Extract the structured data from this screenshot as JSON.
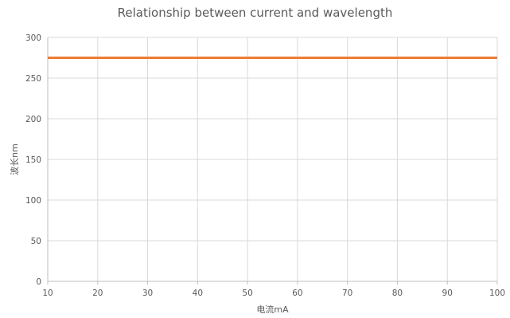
{
  "chart_data": {
    "type": "line",
    "title": "Relationship between current and wavelength",
    "xlabel": "电流mA",
    "ylabel": "波长nm",
    "x": [
      10,
      20,
      30,
      40,
      50,
      60,
      70,
      80,
      90,
      100
    ],
    "series": [
      {
        "values": [
          275,
          275,
          275,
          275,
          275,
          275,
          275,
          275,
          275,
          275
        ],
        "color": "#ED7D31"
      }
    ],
    "xlim": [
      10,
      100
    ],
    "ylim": [
      0,
      300
    ],
    "xticks": [
      "10",
      "20",
      "30",
      "40",
      "50",
      "60",
      "70",
      "80",
      "90",
      "100"
    ],
    "yticks": [
      "0",
      "50",
      "100",
      "150",
      "200",
      "250",
      "300"
    ],
    "grid": true,
    "legend": "none"
  },
  "colors": {
    "line": "#ED7D31",
    "grid": "#D9D9D9",
    "axis": "#BFBFBF",
    "text": "#595959"
  }
}
